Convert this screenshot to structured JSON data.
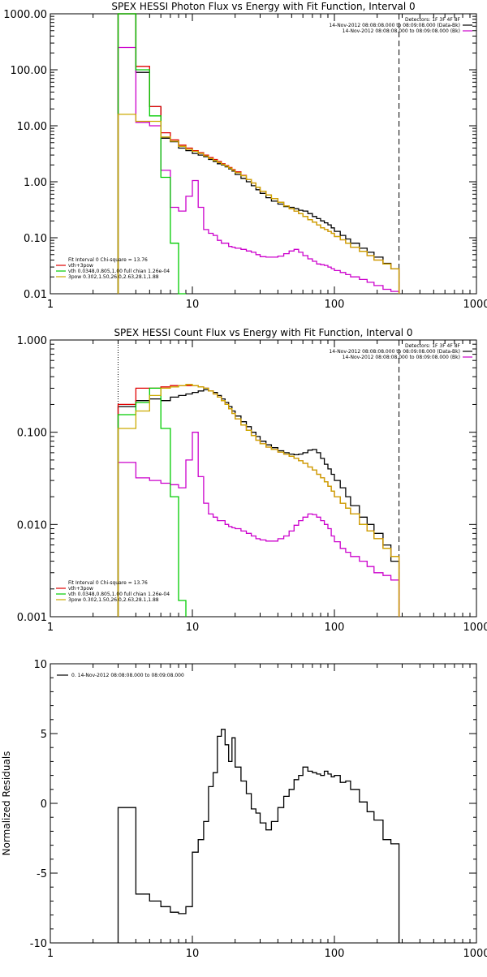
{
  "chart_data": [
    {
      "type": "line",
      "title": "SPEX HESSI Photon Flux vs Energy with Fit Function, Interval 0",
      "xlabel": "",
      "ylabel": "",
      "xscale": "log",
      "yscale": "log",
      "xlim": [
        1,
        1000
      ],
      "ylim": [
        0.01,
        1000
      ],
      "xticks": [
        "1",
        "10",
        "100",
        "1000"
      ],
      "yticks": [
        "0.01",
        "0.10",
        "1.00",
        "10.00",
        "100.00",
        "1000.00"
      ],
      "vlines": [
        3,
        285
      ],
      "legend_top_right": [
        {
          "text": "Detectors: 1F 3F 4F 8F",
          "color": "#000000"
        },
        {
          "text": "14-Nov-2012 08:08:08.000 to 08:09:08.000 (Data-Bk)",
          "color": "#000000"
        },
        {
          "text": "14-Nov-2012 08:08:08.000 to 08:09:08.000 (Bk)",
          "color": "#cc00cc"
        }
      ],
      "legend_bottom_left": [
        {
          "text": "Fit Interval 0   Chi-square = 13.76",
          "color": "#000000"
        },
        {
          "text": "vth+3pow",
          "color": "#e00000"
        },
        {
          "text": "vth 0.0348,0.805,1.00  full chian 1.26e-04",
          "color": "#00cc00"
        },
        {
          "text": "3pow 0.302,1.50,26.0,2.63,28.1,1.88",
          "color": "#ccaa00"
        }
      ],
      "x_edges": [
        3,
        4,
        5,
        6,
        7,
        8,
        9,
        10,
        11,
        12,
        13,
        14,
        15,
        16,
        17,
        18,
        19,
        20,
        22,
        24,
        26,
        28,
        30,
        33,
        36,
        40,
        44,
        48,
        52,
        56,
        60,
        65,
        70,
        75,
        80,
        85,
        90,
        95,
        100,
        110,
        120,
        130,
        150,
        170,
        190,
        220,
        250,
        285
      ],
      "series": [
        {
          "name": "Data-Bk",
          "color": "#000000",
          "values": [
            1000,
            90,
            22,
            6.0,
            5.2,
            4.0,
            3.6,
            3.2,
            3.0,
            2.8,
            2.5,
            2.3,
            2.1,
            2.0,
            1.85,
            1.7,
            1.55,
            1.35,
            1.15,
            1.0,
            0.85,
            0.72,
            0.62,
            0.52,
            0.45,
            0.4,
            0.36,
            0.35,
            0.33,
            0.31,
            0.3,
            0.27,
            0.24,
            0.22,
            0.2,
            0.185,
            0.17,
            0.15,
            0.13,
            0.11,
            0.095,
            0.08,
            0.065,
            0.055,
            0.045,
            0.035,
            0.028
          ]
        },
        {
          "name": "Bk",
          "color": "#cc00cc",
          "values": [
            250,
            11.5,
            10,
            1.6,
            0.35,
            0.3,
            0.55,
            1.05,
            0.35,
            0.14,
            0.12,
            0.11,
            0.09,
            0.08,
            0.08,
            0.07,
            0.068,
            0.065,
            0.062,
            0.058,
            0.055,
            0.05,
            0.046,
            0.045,
            0.045,
            0.047,
            0.052,
            0.058,
            0.062,
            0.055,
            0.048,
            0.042,
            0.038,
            0.034,
            0.033,
            0.032,
            0.03,
            0.028,
            0.026,
            0.024,
            0.022,
            0.02,
            0.018,
            0.016,
            0.014,
            0.012,
            0.011
          ]
        },
        {
          "name": "vth+3pow",
          "color": "#e00000",
          "values": [
            1000,
            115,
            22,
            7.5,
            5.6,
            4.5,
            4.0,
            3.6,
            3.3,
            3.0,
            2.7,
            2.5,
            2.3,
            2.1,
            1.95,
            1.8,
            1.65,
            1.5,
            1.3,
            1.1,
            0.95,
            0.8,
            0.68,
            0.58,
            0.5,
            0.43,
            0.37,
            0.33,
            0.3,
            0.27,
            0.24,
            0.21,
            0.19,
            0.17,
            0.15,
            0.14,
            0.13,
            0.12,
            0.105,
            0.092,
            0.08,
            0.068,
            0.057,
            0.048,
            0.04,
            0.034,
            0.028
          ]
        },
        {
          "name": "vth",
          "color": "#00cc00",
          "values": [
            1000,
            100,
            15,
            1.2,
            0.08,
            0.003
          ]
        },
        {
          "name": "3pow",
          "color": "#ccaa00",
          "values": [
            16,
            12,
            12,
            6.3,
            5.3,
            4.3,
            3.8,
            3.5,
            3.2,
            2.9,
            2.6,
            2.4,
            2.2,
            2.05,
            1.9,
            1.75,
            1.6,
            1.45,
            1.28,
            1.1,
            0.95,
            0.8,
            0.68,
            0.58,
            0.5,
            0.43,
            0.37,
            0.33,
            0.3,
            0.27,
            0.24,
            0.21,
            0.19,
            0.17,
            0.15,
            0.14,
            0.13,
            0.12,
            0.105,
            0.092,
            0.08,
            0.068,
            0.057,
            0.048,
            0.04,
            0.034,
            0.028
          ]
        }
      ]
    },
    {
      "type": "line",
      "title": "SPEX HESSI Count Flux vs Energy with Fit Function, Interval 0",
      "xlabel": "",
      "ylabel": "",
      "xscale": "log",
      "yscale": "log",
      "xlim": [
        1,
        1000
      ],
      "ylim": [
        0.001,
        1
      ],
      "xticks": [
        "1",
        "10",
        "100",
        "1000"
      ],
      "yticks": [
        "0.001",
        "0.010",
        "0.100",
        "1.000"
      ],
      "vlines": [
        3,
        285
      ],
      "legend_top_right": [
        {
          "text": "Detectors: 1F 3F 4F 8F",
          "color": "#000000"
        },
        {
          "text": "14-Nov-2012 08:08:08.000 to 08:09:08.000 (Data-Bk)",
          "color": "#000000"
        },
        {
          "text": "14-Nov-2012 08:08:08.000 to 08:09:08.000 (Bk)",
          "color": "#cc00cc"
        }
      ],
      "legend_bottom_left": [
        {
          "text": "Fit Interval 0   Chi-square = 13.76",
          "color": "#000000"
        },
        {
          "text": "vth+3pow",
          "color": "#e00000"
        },
        {
          "text": "vth 0.0348,0.805,1.00  full chian 1.26e-04",
          "color": "#00cc00"
        },
        {
          "text": "3pow 0.302,1.50,26.0,2.63,28.1,1.88",
          "color": "#ccaa00"
        }
      ],
      "x_edges": [
        3,
        4,
        5,
        6,
        7,
        8,
        9,
        10,
        11,
        12,
        13,
        14,
        15,
        16,
        17,
        18,
        19,
        20,
        22,
        24,
        26,
        28,
        30,
        33,
        36,
        40,
        44,
        48,
        52,
        56,
        60,
        65,
        70,
        75,
        80,
        85,
        90,
        95,
        100,
        110,
        120,
        130,
        150,
        170,
        190,
        220,
        250,
        285
      ],
      "series": [
        {
          "name": "Data-Bk",
          "color": "#000000",
          "values": [
            0.19,
            0.22,
            0.23,
            0.22,
            0.24,
            0.25,
            0.26,
            0.27,
            0.28,
            0.29,
            0.28,
            0.27,
            0.25,
            0.23,
            0.21,
            0.19,
            0.17,
            0.15,
            0.13,
            0.115,
            0.1,
            0.09,
            0.08,
            0.073,
            0.068,
            0.063,
            0.06,
            0.058,
            0.057,
            0.058,
            0.06,
            0.064,
            0.065,
            0.06,
            0.052,
            0.045,
            0.04,
            0.035,
            0.03,
            0.025,
            0.02,
            0.016,
            0.012,
            0.01,
            0.008,
            0.006,
            0.004
          ]
        },
        {
          "name": "Bk",
          "color": "#cc00cc",
          "values": [
            0.047,
            0.032,
            0.03,
            0.028,
            0.027,
            0.025,
            0.05,
            0.1,
            0.033,
            0.017,
            0.013,
            0.012,
            0.011,
            0.011,
            0.01,
            0.0095,
            0.0092,
            0.009,
            0.0085,
            0.008,
            0.0075,
            0.007,
            0.0068,
            0.0066,
            0.0066,
            0.007,
            0.0075,
            0.0085,
            0.0098,
            0.011,
            0.012,
            0.013,
            0.0128,
            0.012,
            0.011,
            0.01,
            0.009,
            0.0075,
            0.0065,
            0.0055,
            0.005,
            0.0045,
            0.004,
            0.0035,
            0.003,
            0.0028,
            0.0025
          ]
        },
        {
          "name": "vth+3pow",
          "color": "#e00000",
          "values": [
            0.2,
            0.3,
            0.3,
            0.31,
            0.32,
            0.32,
            0.32,
            0.32,
            0.31,
            0.3,
            0.28,
            0.26,
            0.24,
            0.22,
            0.2,
            0.18,
            0.16,
            0.14,
            0.12,
            0.105,
            0.092,
            0.082,
            0.075,
            0.069,
            0.065,
            0.061,
            0.058,
            0.055,
            0.052,
            0.049,
            0.046,
            0.042,
            0.039,
            0.035,
            0.032,
            0.029,
            0.026,
            0.023,
            0.02,
            0.017,
            0.015,
            0.013,
            0.01,
            0.0085,
            0.007,
            0.0055,
            0.0045
          ]
        },
        {
          "name": "vth",
          "color": "#00cc00",
          "values": [
            0.155,
            0.21,
            0.3,
            0.11,
            0.02,
            0.0015
          ]
        },
        {
          "name": "3pow",
          "color": "#ccaa00",
          "values": [
            0.11,
            0.17,
            0.25,
            0.3,
            0.31,
            0.32,
            0.33,
            0.32,
            0.31,
            0.3,
            0.28,
            0.26,
            0.24,
            0.22,
            0.2,
            0.18,
            0.16,
            0.14,
            0.12,
            0.105,
            0.092,
            0.082,
            0.075,
            0.069,
            0.065,
            0.061,
            0.058,
            0.055,
            0.052,
            0.049,
            0.046,
            0.042,
            0.039,
            0.035,
            0.032,
            0.029,
            0.026,
            0.023,
            0.02,
            0.017,
            0.015,
            0.013,
            0.01,
            0.0085,
            0.007,
            0.0055,
            0.0045
          ]
        }
      ]
    },
    {
      "type": "line",
      "title": "",
      "xlabel": "",
      "ylabel": "Normalized Residuals",
      "xscale": "log",
      "yscale": "linear",
      "xlim": [
        1,
        1000
      ],
      "ylim": [
        -10,
        10
      ],
      "xticks": [
        "1",
        "10",
        "100",
        "1000"
      ],
      "yticks": [
        "-10",
        "-5",
        "0",
        "5",
        "10"
      ],
      "legend_top_left": [
        {
          "text": "0. 14-Nov-2012 08:08:08.000 to 08:09:08.000",
          "color": "#000000"
        }
      ],
      "x_edges": [
        3,
        4,
        5,
        6,
        7,
        8,
        9,
        10,
        11,
        12,
        13,
        14,
        15,
        16,
        17,
        18,
        19,
        20,
        22,
        24,
        26,
        28,
        30,
        33,
        36,
        40,
        44,
        48,
        52,
        56,
        60,
        65,
        70,
        75,
        80,
        85,
        90,
        95,
        100,
        110,
        120,
        130,
        150,
        170,
        190,
        220,
        250,
        285
      ],
      "series": [
        {
          "name": "Residuals",
          "color": "#000000",
          "values": [
            -0.3,
            -6.5,
            -7.0,
            -7.4,
            -7.8,
            -7.9,
            -7.4,
            -3.5,
            -2.6,
            -1.3,
            1.2,
            2.2,
            4.8,
            5.3,
            4.2,
            3.0,
            4.7,
            2.6,
            1.6,
            0.7,
            -0.4,
            -0.7,
            -1.4,
            -1.9,
            -1.3,
            -0.3,
            0.5,
            1.0,
            1.7,
            2.0,
            2.6,
            2.3,
            2.2,
            2.1,
            2.0,
            2.3,
            2.1,
            1.9,
            2.0,
            1.5,
            1.6,
            1.0,
            0.1,
            -0.6,
            -1.2,
            -2.6,
            -2.9
          ]
        }
      ]
    }
  ]
}
